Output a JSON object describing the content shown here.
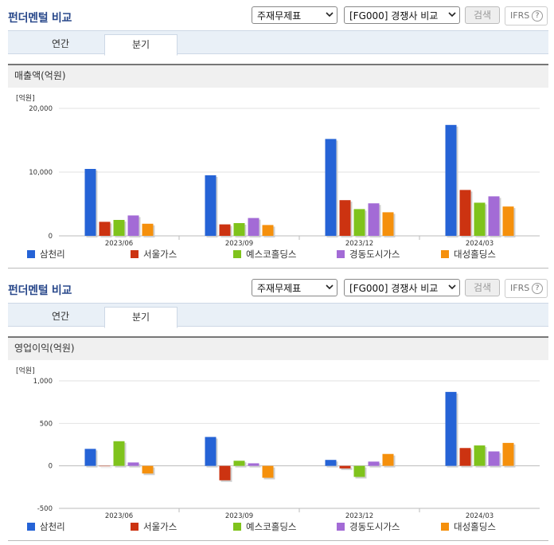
{
  "sections": [
    {
      "title": "펀더멘털 비교",
      "select1": "주재무제표",
      "select2": "[FG000] 경쟁사 비교",
      "search_label": "검색",
      "ifrs_label": "IFRS",
      "ifrs_help": "?",
      "tabs": [
        "연간",
        "분기"
      ],
      "active_tab": "분기",
      "subheader": "매출액(억원)"
    },
    {
      "title": "펀더멘털 비교",
      "select1": "주재무제표",
      "select2": "[FG000] 경쟁사 비교",
      "search_label": "검색",
      "ifrs_label": "IFRS",
      "ifrs_help": "?",
      "tabs": [
        "연간",
        "분기"
      ],
      "active_tab": "분기",
      "subheader": "영업이익(억원)"
    }
  ],
  "chart_data": [
    {
      "type": "bar",
      "unit_label": "[억원]",
      "categories": [
        "2023/06",
        "2023/09",
        "2023/12",
        "2024/03"
      ],
      "ylim": [
        0,
        20000
      ],
      "yticks": [
        0,
        10000,
        20000
      ],
      "ytick_labels": [
        "0",
        "10,000",
        "20,000"
      ],
      "grid": true,
      "legend_position": "bottom",
      "series": [
        {
          "name": "삼천리",
          "color": "#2563d6",
          "values": [
            10500,
            9500,
            15200,
            17400
          ]
        },
        {
          "name": "서울가스",
          "color": "#cc3311",
          "values": [
            2200,
            1800,
            5600,
            7200
          ]
        },
        {
          "name": "예스코홀딩스",
          "color": "#7fc31c",
          "values": [
            2500,
            2000,
            4200,
            5200
          ]
        },
        {
          "name": "경동도시가스",
          "color": "#a36bd6",
          "values": [
            3200,
            2800,
            5100,
            6200
          ]
        },
        {
          "name": "대성홀딩스",
          "color": "#f5900c",
          "values": [
            1900,
            1700,
            3700,
            4600
          ]
        }
      ]
    },
    {
      "type": "bar",
      "unit_label": "[억원]",
      "categories": [
        "2023/06",
        "2023/09",
        "2023/12",
        "2024/03"
      ],
      "ylim": [
        -500,
        1000
      ],
      "yticks": [
        -500,
        0,
        500,
        1000
      ],
      "ytick_labels": [
        "-500",
        "0",
        "500",
        "1,000"
      ],
      "grid": true,
      "legend_position": "bottom",
      "series": [
        {
          "name": "삼천리",
          "color": "#2563d6",
          "values": [
            200,
            340,
            70,
            870
          ]
        },
        {
          "name": "서울가스",
          "color": "#cc3311",
          "values": [
            0,
            -170,
            -30,
            210
          ]
        },
        {
          "name": "예스코홀딩스",
          "color": "#7fc31c",
          "values": [
            290,
            60,
            -130,
            240
          ]
        },
        {
          "name": "경동도시가스",
          "color": "#a36bd6",
          "values": [
            40,
            30,
            50,
            170
          ]
        },
        {
          "name": "대성홀딩스",
          "color": "#f5900c",
          "values": [
            -90,
            -140,
            140,
            270
          ]
        }
      ]
    }
  ]
}
